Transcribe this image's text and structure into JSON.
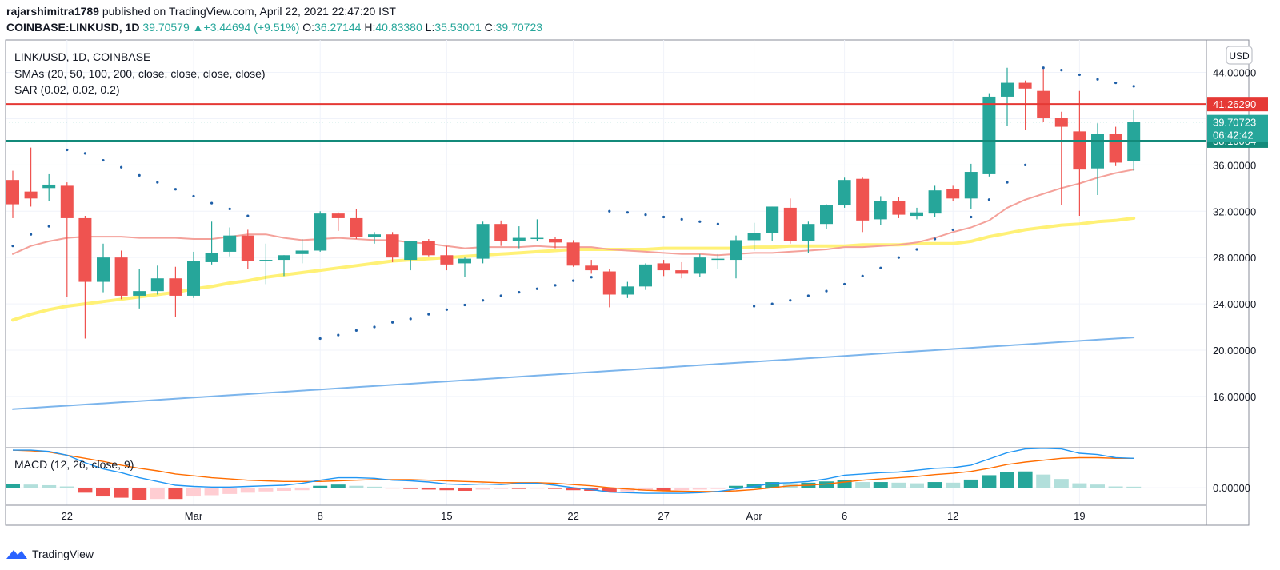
{
  "header": {
    "author": "rajarshimitra1789",
    "published": "published on TradingView.com, April 22, 2021 22:47:20 IST",
    "symbol": "COINBASE:LINKUSD, 1D",
    "last": "39.70579",
    "change_arrow": "▲",
    "change": "+3.44694 (+9.51%)",
    "o_label": "O:",
    "o": "36.27144",
    "h_label": "H:",
    "h": "40.83380",
    "l_label": "L:",
    "l": "35.53001",
    "c_label": "C:",
    "c": "39.70723"
  },
  "legend": {
    "title": "LINK/USD, 1D, COINBASE",
    "sma": "SMAs (20, 50, 100, 200, close, close, close, close)",
    "sar": "SAR (0.02, 0.02, 0.2)",
    "macd": "MACD (12, 26, close, 9)",
    "currency": "USD"
  },
  "footer": {
    "brand": "TradingView"
  },
  "colors": {
    "up": "#26a69a",
    "down": "#ef5350",
    "sma20": "#f4a19a",
    "sma50": "#fff176",
    "sma200": "#7cb5ec",
    "sar": "#1e5fa8",
    "resistance": "#e53935",
    "support": "#138a7a",
    "macd_line": "#2196f3",
    "signal_line": "#ff6d00"
  },
  "chart_data": {
    "type": "candlestick",
    "y_ticks": [
      16,
      20,
      24,
      28,
      32,
      36,
      40,
      44
    ],
    "y_tick_labels": [
      "16.00000",
      "20.00000",
      "24.00000",
      "28.00000",
      "32.00000",
      "36.00000",
      "40.00000",
      "44.00000"
    ],
    "ylim": [
      12.4,
      46.8
    ],
    "x_tick_labels": [
      {
        "i": 3,
        "label": "22"
      },
      {
        "i": 10,
        "label": "Mar"
      },
      {
        "i": 17,
        "label": "8"
      },
      {
        "i": 24,
        "label": "15"
      },
      {
        "i": 31,
        "label": "22"
      },
      {
        "i": 36,
        "label": "27"
      },
      {
        "i": 41,
        "label": "Apr"
      },
      {
        "i": 46,
        "label": "6"
      },
      {
        "i": 52,
        "label": "12"
      },
      {
        "i": 59,
        "label": "19"
      }
    ],
    "candles": [
      [
        34.7,
        35.5,
        31.4,
        32.6
      ],
      [
        33.7,
        37.5,
        32.4,
        33.1
      ],
      [
        34.0,
        35.2,
        32.9,
        34.3
      ],
      [
        34.2,
        34.5,
        24.6,
        31.4
      ],
      [
        31.4,
        31.6,
        21.0,
        25.9
      ],
      [
        25.9,
        29.2,
        25.0,
        28.0
      ],
      [
        28.0,
        28.6,
        24.4,
        24.7
      ],
      [
        24.7,
        27.0,
        23.6,
        25.1
      ],
      [
        25.1,
        27.3,
        24.8,
        26.2
      ],
      [
        26.2,
        27.2,
        22.9,
        24.7
      ],
      [
        24.7,
        28.5,
        24.5,
        27.7
      ],
      [
        27.6,
        31.1,
        27.4,
        28.4
      ],
      [
        28.5,
        30.6,
        28.1,
        29.9
      ],
      [
        29.9,
        30.4,
        27.0,
        27.7
      ],
      [
        27.7,
        29.2,
        25.7,
        27.8
      ],
      [
        27.8,
        28.2,
        26.4,
        28.2
      ],
      [
        28.3,
        29.6,
        27.5,
        28.6
      ],
      [
        28.6,
        32.0,
        28.5,
        31.8
      ],
      [
        31.8,
        31.9,
        30.3,
        31.4
      ],
      [
        31.4,
        32.2,
        29.6,
        29.8
      ],
      [
        29.8,
        30.2,
        29.2,
        30.0
      ],
      [
        30.0,
        30.2,
        27.6,
        28.0
      ],
      [
        27.8,
        29.4,
        26.9,
        29.4
      ],
      [
        29.4,
        29.6,
        28.1,
        28.2
      ],
      [
        28.2,
        29.0,
        26.9,
        27.4
      ],
      [
        27.5,
        28.0,
        26.3,
        27.9
      ],
      [
        27.9,
        31.1,
        27.5,
        30.9
      ],
      [
        30.9,
        31.2,
        29.0,
        29.4
      ],
      [
        29.4,
        30.7,
        28.8,
        29.7
      ],
      [
        29.7,
        31.3,
        29.4,
        29.7
      ],
      [
        29.6,
        29.8,
        28.8,
        29.3
      ],
      [
        29.3,
        29.5,
        27.2,
        27.3
      ],
      [
        27.3,
        27.8,
        26.6,
        26.9
      ],
      [
        26.8,
        27.0,
        23.7,
        24.8
      ],
      [
        24.8,
        25.9,
        24.5,
        25.5
      ],
      [
        25.5,
        27.5,
        25.2,
        27.4
      ],
      [
        27.5,
        27.8,
        26.4,
        26.9
      ],
      [
        26.9,
        27.6,
        26.2,
        26.6
      ],
      [
        26.6,
        28.3,
        26.3,
        28.0
      ],
      [
        27.8,
        28.3,
        27.0,
        27.9
      ],
      [
        27.8,
        29.9,
        26.2,
        29.5
      ],
      [
        29.5,
        31.0,
        28.6,
        30.1
      ],
      [
        30.1,
        32.4,
        29.4,
        32.4
      ],
      [
        32.3,
        33.1,
        29.2,
        29.4
      ],
      [
        29.4,
        31.1,
        28.4,
        30.9
      ],
      [
        30.9,
        32.6,
        30.5,
        32.5
      ],
      [
        32.5,
        34.9,
        32.3,
        34.7
      ],
      [
        34.8,
        34.9,
        30.2,
        31.2
      ],
      [
        31.3,
        33.3,
        30.8,
        32.9
      ],
      [
        32.9,
        33.2,
        31.4,
        31.7
      ],
      [
        31.6,
        32.3,
        31.3,
        31.9
      ],
      [
        31.8,
        34.2,
        31.5,
        33.8
      ],
      [
        33.9,
        34.2,
        32.9,
        33.1
      ],
      [
        33.1,
        36.1,
        32.2,
        35.4
      ],
      [
        35.2,
        42.2,
        35.0,
        41.9
      ],
      [
        41.9,
        44.4,
        39.4,
        43.1
      ],
      [
        43.1,
        43.3,
        39.0,
        42.6
      ],
      [
        42.4,
        44.3,
        39.7,
        40.1
      ],
      [
        40.1,
        40.6,
        32.5,
        39.3
      ],
      [
        38.9,
        42.4,
        31.6,
        35.6
      ],
      [
        35.7,
        39.6,
        33.4,
        38.7
      ],
      [
        38.7,
        39.3,
        35.9,
        36.2
      ],
      [
        36.3,
        40.8,
        35.5,
        39.7
      ]
    ],
    "sma20": [
      28.3,
      29.0,
      29.4,
      29.7,
      29.8,
      29.8,
      29.8,
      29.7,
      29.7,
      29.7,
      29.6,
      29.6,
      29.8,
      30.0,
      30.0,
      29.7,
      29.5,
      29.6,
      29.7,
      29.6,
      29.5,
      29.5,
      29.3,
      29.2,
      29.0,
      28.8,
      28.9,
      28.9,
      28.9,
      29.0,
      28.9,
      28.9,
      28.9,
      28.7,
      28.6,
      28.5,
      28.4,
      28.3,
      28.3,
      28.2,
      28.3,
      28.4,
      28.4,
      28.5,
      28.6,
      28.7,
      28.9,
      28.9,
      29.0,
      29.1,
      29.3,
      29.7,
      30.2,
      30.6,
      31.2,
      32.3,
      33.0,
      33.5,
      34.0,
      34.4,
      34.9,
      35.3,
      35.6
    ],
    "sma50": [
      22.6,
      23.1,
      23.5,
      23.8,
      24.0,
      24.2,
      24.4,
      24.6,
      24.8,
      25.0,
      25.3,
      25.5,
      25.8,
      26.0,
      26.3,
      26.5,
      26.7,
      26.9,
      27.1,
      27.3,
      27.5,
      27.7,
      27.8,
      27.9,
      28.0,
      28.1,
      28.2,
      28.3,
      28.4,
      28.5,
      28.6,
      28.7,
      28.7,
      28.7,
      28.7,
      28.7,
      28.8,
      28.8,
      28.8,
      28.8,
      28.8,
      28.9,
      28.9,
      29.0,
      29.0,
      29.0,
      29.0,
      29.1,
      29.1,
      29.1,
      29.2,
      29.2,
      29.2,
      29.4,
      29.8,
      30.1,
      30.4,
      30.6,
      30.8,
      30.9,
      31.1,
      31.2,
      31.4
    ],
    "sma200": [
      14.9,
      15.0,
      15.1,
      15.2,
      15.3,
      15.4,
      15.5,
      15.6,
      15.7,
      15.8,
      15.9,
      16.0,
      16.1,
      16.2,
      16.3,
      16.4,
      16.5,
      16.6,
      16.7,
      16.8,
      16.9,
      17.0,
      17.1,
      17.2,
      17.3,
      17.4,
      17.5,
      17.6,
      17.7,
      17.8,
      17.9,
      18.0,
      18.1,
      18.2,
      18.3,
      18.4,
      18.5,
      18.6,
      18.7,
      18.8,
      18.9,
      19.0,
      19.1,
      19.2,
      19.3,
      19.4,
      19.5,
      19.6,
      19.7,
      19.8,
      19.9,
      20.0,
      20.1,
      20.2,
      20.3,
      20.4,
      20.5,
      20.6,
      20.7,
      20.8,
      20.9,
      21.0,
      21.1
    ],
    "sar": [
      [
        0,
        29.0
      ],
      [
        1,
        30.0
      ],
      [
        2,
        30.7
      ],
      [
        3,
        37.3
      ],
      [
        4,
        37.0
      ],
      [
        5,
        36.4
      ],
      [
        6,
        35.8
      ],
      [
        7,
        35.1
      ],
      [
        8,
        34.5
      ],
      [
        9,
        33.9
      ],
      [
        10,
        33.3
      ],
      [
        11,
        32.7
      ],
      [
        12,
        32.2
      ],
      [
        13,
        31.6
      ],
      [
        17,
        21.0
      ],
      [
        18,
        21.3
      ],
      [
        19,
        21.7
      ],
      [
        20,
        22.0
      ],
      [
        21,
        22.4
      ],
      [
        22,
        22.7
      ],
      [
        23,
        23.1
      ],
      [
        24,
        23.5
      ],
      [
        25,
        23.9
      ],
      [
        26,
        24.3
      ],
      [
        27,
        24.7
      ],
      [
        28,
        25.0
      ],
      [
        29,
        25.3
      ],
      [
        30,
        25.6
      ],
      [
        31,
        26.0
      ],
      [
        32,
        26.3
      ],
      [
        33,
        32.0
      ],
      [
        34,
        31.9
      ],
      [
        35,
        31.7
      ],
      [
        36,
        31.5
      ],
      [
        37,
        31.3
      ],
      [
        38,
        31.1
      ],
      [
        39,
        30.9
      ],
      [
        41,
        23.8
      ],
      [
        42,
        24.0
      ],
      [
        43,
        24.3
      ],
      [
        44,
        24.7
      ],
      [
        45,
        25.1
      ],
      [
        46,
        25.7
      ],
      [
        47,
        26.4
      ],
      [
        48,
        27.1
      ],
      [
        49,
        28.0
      ],
      [
        50,
        28.7
      ],
      [
        51,
        29.6
      ],
      [
        52,
        30.4
      ],
      [
        53,
        31.5
      ],
      [
        54,
        33.0
      ],
      [
        55,
        34.5
      ],
      [
        56,
        36.0
      ],
      [
        57,
        44.4
      ],
      [
        58,
        44.2
      ],
      [
        59,
        43.8
      ],
      [
        60,
        43.4
      ],
      [
        61,
        43.1
      ],
      [
        62,
        42.8
      ]
    ],
    "levels": [
      {
        "value": 41.2629,
        "label": "41.26290"
      },
      {
        "value": 38.10004,
        "label": "38.10004"
      }
    ],
    "last_price": {
      "value": 39.70723,
      "label": "39.70723",
      "countdown": "06:42:42"
    },
    "macd": {
      "y_ticks": [
        0
      ],
      "y_tick_labels": [
        "0.00000"
      ],
      "ylim": [
        -1.4,
        3.2
      ],
      "hist": [
        0.3,
        0.25,
        0.2,
        0.1,
        -0.4,
        -0.7,
        -0.8,
        -1.0,
        -0.9,
        -0.9,
        -0.7,
        -0.6,
        -0.5,
        -0.4,
        -0.3,
        -0.25,
        -0.2,
        0.15,
        0.25,
        0.15,
        0.08,
        -0.05,
        -0.1,
        -0.15,
        -0.2,
        -0.25,
        -0.15,
        -0.1,
        -0.1,
        -0.08,
        -0.1,
        -0.2,
        -0.25,
        -0.35,
        -0.3,
        -0.25,
        -0.25,
        -0.2,
        -0.15,
        -0.1,
        0.15,
        0.3,
        0.45,
        0.35,
        0.4,
        0.5,
        0.6,
        0.45,
        0.45,
        0.4,
        0.35,
        0.45,
        0.4,
        0.65,
        1.0,
        1.25,
        1.3,
        1.05,
        0.7,
        0.35,
        0.25,
        0.1,
        0.08
      ],
      "macd_line": [
        3.0,
        3.0,
        2.9,
        2.6,
        2.0,
        1.5,
        1.2,
        0.8,
        0.5,
        0.2,
        0.1,
        0.05,
        0.05,
        0.1,
        0.15,
        0.2,
        0.35,
        0.6,
        0.8,
        0.8,
        0.75,
        0.6,
        0.55,
        0.45,
        0.3,
        0.25,
        0.3,
        0.25,
        0.35,
        0.35,
        0.2,
        0.0,
        -0.15,
        -0.35,
        -0.4,
        -0.45,
        -0.45,
        -0.45,
        -0.4,
        -0.3,
        -0.1,
        0.1,
        0.35,
        0.4,
        0.5,
        0.7,
        1.0,
        1.1,
        1.2,
        1.25,
        1.4,
        1.55,
        1.6,
        1.8,
        2.3,
        2.8,
        3.1,
        3.15,
        3.1,
        2.75,
        2.65,
        2.4,
        2.35
      ],
      "signal_line": [
        3.0,
        2.95,
        2.85,
        2.6,
        2.35,
        2.1,
        1.8,
        1.55,
        1.35,
        1.1,
        0.95,
        0.8,
        0.7,
        0.6,
        0.55,
        0.5,
        0.5,
        0.5,
        0.55,
        0.6,
        0.65,
        0.65,
        0.65,
        0.6,
        0.55,
        0.5,
        0.45,
        0.4,
        0.4,
        0.4,
        0.35,
        0.25,
        0.15,
        0.0,
        -0.1,
        -0.2,
        -0.25,
        -0.28,
        -0.3,
        -0.3,
        -0.25,
        -0.15,
        0.0,
        0.15,
        0.2,
        0.3,
        0.45,
        0.6,
        0.7,
        0.8,
        0.9,
        1.05,
        1.15,
        1.3,
        1.55,
        1.85,
        2.05,
        2.2,
        2.35,
        2.4,
        2.4,
        2.35,
        2.35
      ]
    }
  }
}
